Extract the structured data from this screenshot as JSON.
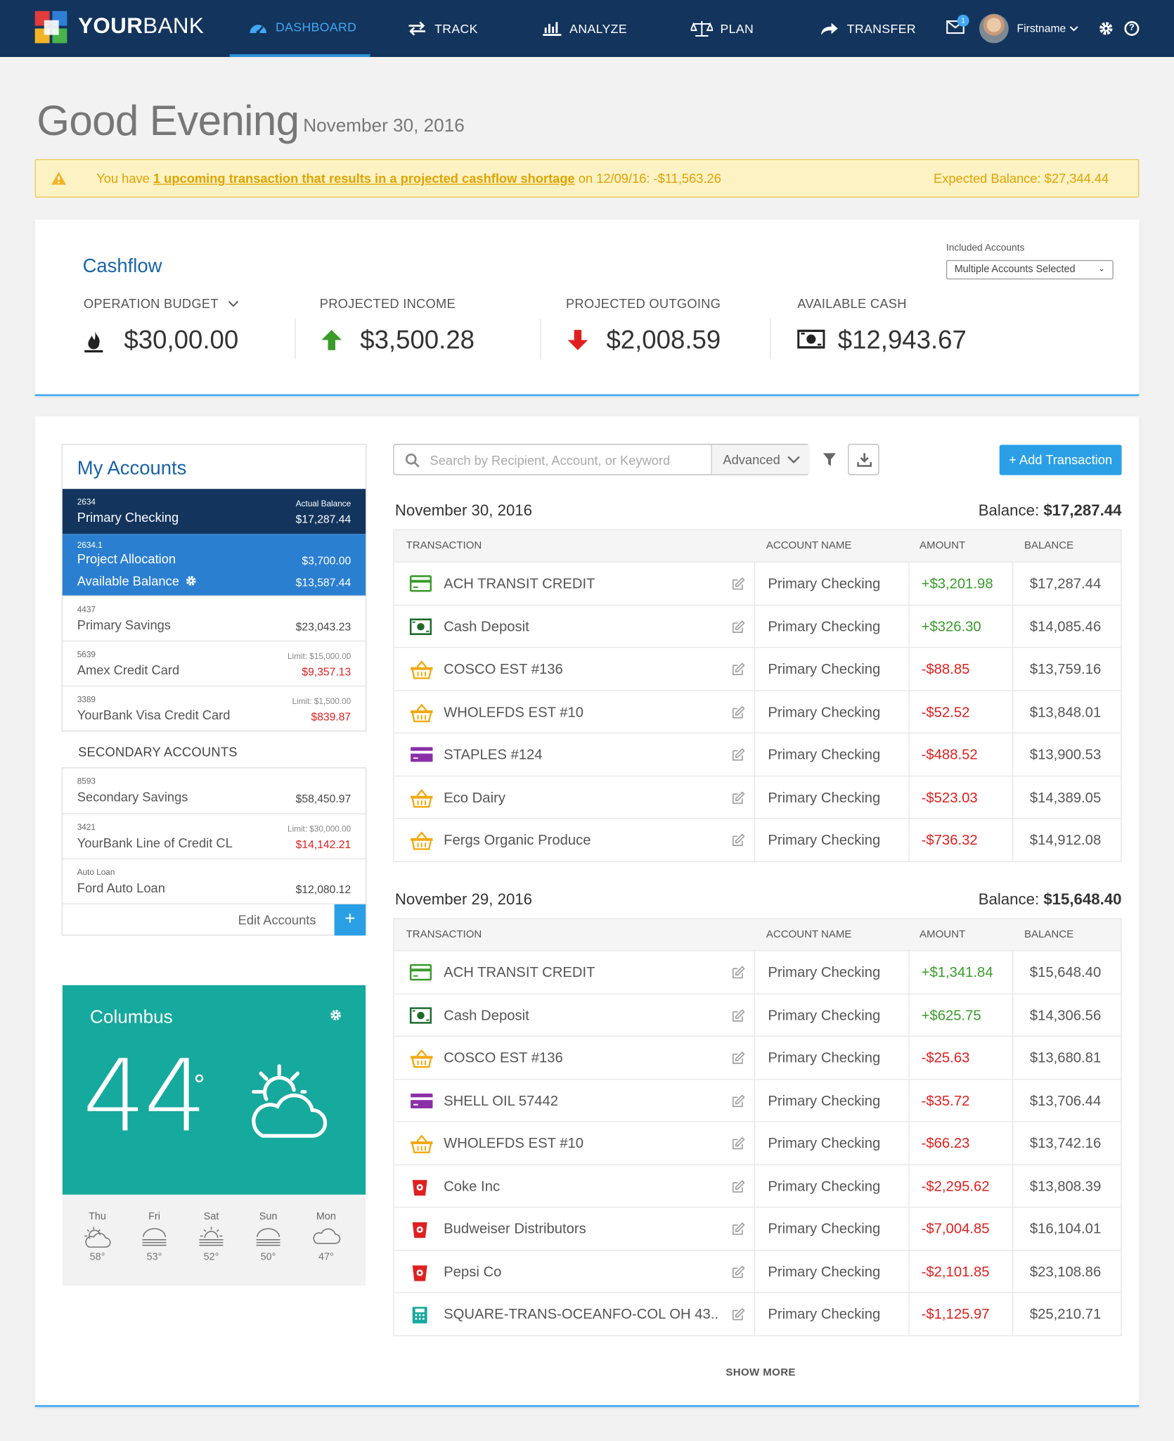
{
  "brand": {
    "your": "YOUR",
    "bank": "BANK"
  },
  "nav": {
    "items": [
      {
        "label": "DASHBOARD",
        "icon": "gauge-icon"
      },
      {
        "label": "TRACK",
        "icon": "swap-arrows-icon"
      },
      {
        "label": "ANALYZE",
        "icon": "bar-chart-icon"
      },
      {
        "label": "PLAN",
        "icon": "scale-icon"
      },
      {
        "label": "TRANSFER",
        "icon": "share-arrow-icon"
      }
    ],
    "mail_badge": "1",
    "username": "Firstname"
  },
  "greeting": {
    "text": "Good Evening",
    "date": "November 30, 2016"
  },
  "alert": {
    "pre": "You have ",
    "link": "1 upcoming transaction that results in a projected cashflow shortage",
    "post": " on 12/09/16: -$11,563.26",
    "expected": "Expected Balance: $27,344.44",
    "color": "#e0a300"
  },
  "cashflow": {
    "title": "Cashflow",
    "included_label": "Included Accounts",
    "included_value": "Multiple Accounts Selected",
    "metrics": [
      {
        "label": "OPERATION BUDGET",
        "value": "$30,00.00"
      },
      {
        "label": "PROJECTED INCOME",
        "value": "$3,500.28"
      },
      {
        "label": "PROJECTED OUTGOING",
        "value": "$2,008.59"
      },
      {
        "label": "AVAILABLE CASH",
        "value": "$12,943.67"
      }
    ]
  },
  "accounts": {
    "title": "My Accounts",
    "primary": {
      "num": "2634",
      "name": "Primary Checking",
      "lim": "Actual Balance",
      "bal": "$17,287.44"
    },
    "allocation": {
      "num": "2634.1",
      "name": "Project Allocation",
      "bal": "$3,700.00",
      "avail_label": "Available Balance",
      "avail": "$13,587.44"
    },
    "list": [
      {
        "num": "4437",
        "name": "Primary Savings",
        "lim": "",
        "bal": "$23,043.23"
      },
      {
        "num": "5639",
        "name": "Amex Credit Card",
        "lim": "Limit: $15,000.00",
        "bal": "$9,357.13"
      },
      {
        "num": "3389",
        "name": "YourBank Visa Credit Card",
        "lim": "Limit: $1,500.00",
        "bal": "$839.87"
      }
    ],
    "secondary_label": "SECONDARY ACCOUNTS",
    "secondary": [
      {
        "num": "8593",
        "name": "Secondary Savings",
        "lim": "",
        "bal": "$58,450.97"
      },
      {
        "num": "3421",
        "name": "YourBank Line of Credit CL",
        "lim": "Limit: $30,000.00",
        "bal": "$14,142.21"
      },
      {
        "num": "Auto Loan",
        "name": "Ford Auto Loan",
        "lim": "",
        "bal": "$12,080.12"
      }
    ],
    "edit": "Edit Accounts"
  },
  "weather": {
    "city": "Columbus",
    "temp": "44",
    "deg": "°",
    "forecast": [
      {
        "day": "Thu",
        "temp": "58°"
      },
      {
        "day": "Fri",
        "temp": "53°"
      },
      {
        "day": "Sat",
        "temp": "52°"
      },
      {
        "day": "Sun",
        "temp": "50°"
      },
      {
        "day": "Mon",
        "temp": "47°"
      }
    ]
  },
  "search": {
    "placeholder": "Search by Recipient, Account, or Keyword",
    "advanced": "Advanced"
  },
  "add_transaction": "+ Add Transaction",
  "columns": [
    "TRANSACTION",
    "ACCOUNT NAME",
    "AMOUNT",
    "BALANCE"
  ],
  "balance_label": "Balance: ",
  "days": [
    {
      "date": "November 30,  2016",
      "balance": "$17,287.44",
      "rows": [
        {
          "icon": "card-green",
          "name": "ACH TRANSIT CREDIT",
          "account": "Primary Checking",
          "amount": "+$3,201.98",
          "balance": "$17,287.44"
        },
        {
          "icon": "cash",
          "name": "Cash Deposit",
          "account": "Primary Checking",
          "amount": "+$326.30",
          "balance": "$14,085.46"
        },
        {
          "icon": "basket",
          "name": "COSCO EST #136",
          "account": "Primary Checking",
          "amount": "-$88.85",
          "balance": "$13,759.16"
        },
        {
          "icon": "basket",
          "name": "WHOLEFDS EST #10",
          "account": "Primary Checking",
          "amount": "-$52.52",
          "balance": "$13,848.01"
        },
        {
          "icon": "card-purple",
          "name": "STAPLES #124",
          "account": "Primary Checking",
          "amount": "-$488.52",
          "balance": "$13,900.53"
        },
        {
          "icon": "basket",
          "name": "Eco Dairy",
          "account": "Primary Checking",
          "amount": "-$523.03",
          "balance": "$14,389.05"
        },
        {
          "icon": "basket",
          "name": "Fergs Organic Produce",
          "account": "Primary Checking",
          "amount": "-$736.32",
          "balance": "$14,912.08"
        }
      ]
    },
    {
      "date": "November 29, 2016",
      "balance": "$15,648.40",
      "rows": [
        {
          "icon": "card-green",
          "name": "ACH TRANSIT CREDIT",
          "account": "Primary Checking",
          "amount": "+$1,341.84",
          "balance": "$15,648.40"
        },
        {
          "icon": "cash",
          "name": "Cash Deposit",
          "account": "Primary Checking",
          "amount": "+$625.75",
          "balance": "$14,306.56"
        },
        {
          "icon": "basket",
          "name": "COSCO EST #136",
          "account": "Primary Checking",
          "amount": "-$25.63",
          "balance": "$13,680.81"
        },
        {
          "icon": "card-purple",
          "name": "SHELL OIL 57442",
          "account": "Primary Checking",
          "amount": "-$35.72",
          "balance": "$13,706.44"
        },
        {
          "icon": "basket",
          "name": "WHOLEFDS EST #10",
          "account": "Primary Checking",
          "amount": "-$66.23",
          "balance": "$13,742.16"
        },
        {
          "icon": "cup",
          "name": "Coke Inc",
          "account": "Primary Checking",
          "amount": "-$2,295.62",
          "balance": "$13,808.39"
        },
        {
          "icon": "cup",
          "name": "Budweiser Distributors",
          "account": "Primary Checking",
          "amount": "-$7,004.85",
          "balance": "$16,104.01"
        },
        {
          "icon": "cup",
          "name": "Pepsi Co",
          "account": "Primary Checking",
          "amount": "-$2,101.85",
          "balance": "$23,108.86"
        },
        {
          "icon": "register",
          "name": "SQUARE-TRANS-OCEANFO-COL OH 43...",
          "account": "Primary Checking",
          "amount": "-$1,125.97",
          "balance": "$25,210.71"
        }
      ]
    }
  ],
  "show_more": "SHOW MORE",
  "colors": {
    "nav": "#13345c",
    "accent": "#3fa9f5",
    "positive": "#3a9b2b",
    "negative": "#e02020",
    "weather": "#16a99d"
  }
}
